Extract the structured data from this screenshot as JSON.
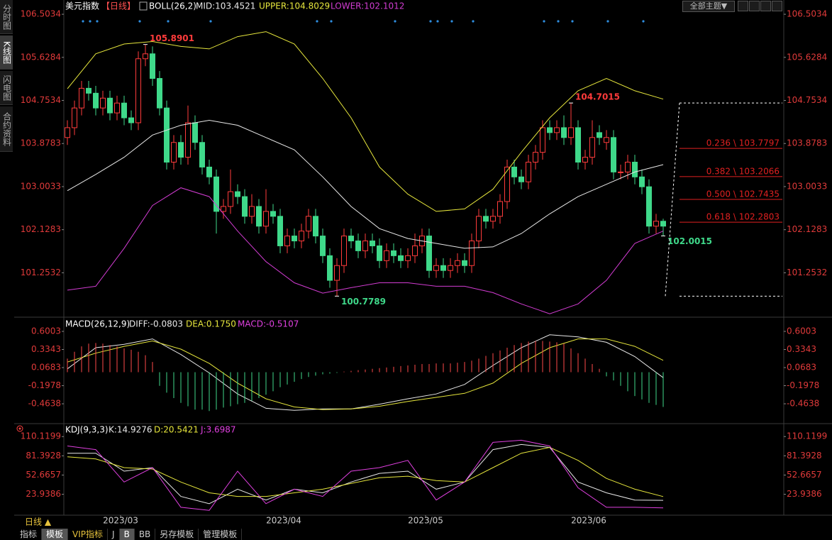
{
  "chart_data": [
    {
      "type": "candlestick",
      "title": "美元指数",
      "period": "【日线】",
      "indicator": "BOLL(26,2)",
      "up_color": "#ff3b3b",
      "down_color": "#3fd98a",
      "xlim": [
        -0.5,
        101
      ],
      "xticks": [
        {
          "value": 7.5,
          "label": "2023/03"
        },
        {
          "value": 30.5,
          "label": "2023/04"
        },
        {
          "value": 50.5,
          "label": "2023/05"
        },
        {
          "value": 73.5,
          "label": "2023/06"
        }
      ],
      "ylim": [
        100.38,
        106.62
      ],
      "yticks": [
        106.5034,
        105.6284,
        104.7534,
        103.8783,
        103.0033,
        102.1283,
        101.2532
      ],
      "open": [
        104.0,
        104.2,
        104.6,
        105.0,
        104.9,
        104.6,
        104.8,
        104.5,
        104.7,
        104.4,
        104.3,
        105.6,
        105.7,
        105.2,
        104.6,
        103.5,
        103.9,
        103.6,
        104.3,
        103.9,
        103.4,
        103.2,
        102.5,
        102.6,
        102.9,
        102.8,
        102.4,
        102.6,
        102.2,
        102.5,
        102.4,
        101.8,
        102.0,
        101.9,
        102.1,
        102.4,
        102.0,
        101.6,
        101.1,
        101.4,
        102.0,
        101.9,
        101.7,
        101.9,
        101.8,
        101.5,
        101.7,
        101.6,
        101.5,
        101.6,
        101.8,
        102.0,
        101.3,
        101.4,
        101.3,
        101.4,
        101.5,
        101.4,
        101.9,
        102.4,
        102.3,
        102.4,
        102.7,
        103.4,
        103.2,
        103.1,
        103.5,
        103.7,
        104.2,
        104.1,
        104.2,
        104.0,
        104.2,
        103.5,
        103.6,
        104.1,
        103.9,
        104.0,
        103.3,
        103.3,
        103.5,
        103.2,
        103.0,
        102.2,
        102.3
      ],
      "high": [
        104.35,
        104.75,
        105.15,
        105.15,
        105.05,
        104.95,
        104.95,
        104.85,
        104.85,
        104.55,
        105.75,
        105.8901,
        105.85,
        105.35,
        104.75,
        104.05,
        104.05,
        104.65,
        104.45,
        104.05,
        103.55,
        103.35,
        102.75,
        103.35,
        103.05,
        102.95,
        102.85,
        102.75,
        102.95,
        102.65,
        102.55,
        102.15,
        102.15,
        102.25,
        102.55,
        102.55,
        102.15,
        101.75,
        101.55,
        102.15,
        102.15,
        102.05,
        102.05,
        102.05,
        101.95,
        101.85,
        101.85,
        101.75,
        101.75,
        102.05,
        102.15,
        102.15,
        101.55,
        101.55,
        101.55,
        101.65,
        101.65,
        102.05,
        102.55,
        102.55,
        102.55,
        102.85,
        103.55,
        103.55,
        103.35,
        103.65,
        103.85,
        104.35,
        104.35,
        104.35,
        104.45,
        104.7015,
        104.35,
        103.75,
        104.35,
        104.25,
        104.15,
        104.15,
        103.45,
        103.65,
        103.65,
        103.35,
        103.15,
        102.45,
        102.35
      ],
      "low": [
        103.85,
        104.05,
        104.45,
        104.75,
        104.45,
        104.45,
        104.35,
        104.35,
        104.25,
        104.15,
        104.15,
        105.45,
        105.05,
        104.45,
        103.35,
        103.35,
        103.45,
        103.45,
        103.75,
        103.25,
        103.05,
        102.05,
        102.35,
        102.45,
        102.65,
        102.25,
        102.25,
        102.05,
        102.05,
        102.25,
        101.65,
        101.65,
        101.75,
        101.75,
        101.95,
        101.85,
        101.45,
        100.95,
        100.7789,
        101.25,
        101.75,
        101.55,
        101.55,
        101.65,
        101.35,
        101.35,
        101.45,
        101.35,
        101.35,
        101.45,
        101.65,
        101.15,
        101.15,
        101.15,
        101.15,
        101.25,
        101.25,
        101.25,
        101.75,
        102.15,
        102.15,
        102.25,
        102.55,
        103.05,
        102.95,
        102.95,
        103.35,
        103.55,
        103.95,
        103.95,
        103.85,
        103.85,
        103.35,
        103.35,
        103.45,
        103.85,
        103.75,
        103.15,
        103.15,
        103.15,
        103.05,
        102.85,
        102.05,
        102.05,
        102.0015
      ],
      "close": [
        104.2,
        104.6,
        105.0,
        104.9,
        104.6,
        104.8,
        104.5,
        104.7,
        104.4,
        104.3,
        105.6,
        105.7,
        105.2,
        104.6,
        103.5,
        103.9,
        103.6,
        104.3,
        103.9,
        103.4,
        103.2,
        102.5,
        102.6,
        102.9,
        102.8,
        102.4,
        102.6,
        102.2,
        102.5,
        102.4,
        101.8,
        102.0,
        101.9,
        102.1,
        102.4,
        102.0,
        101.6,
        101.1,
        101.4,
        102.0,
        101.9,
        101.7,
        101.9,
        101.8,
        101.5,
        101.7,
        101.6,
        101.5,
        101.6,
        101.8,
        102.0,
        101.3,
        101.4,
        101.3,
        101.4,
        101.5,
        101.4,
        101.9,
        102.4,
        102.3,
        102.4,
        102.7,
        103.4,
        103.2,
        103.1,
        103.5,
        103.7,
        104.2,
        104.1,
        104.2,
        104.0,
        104.2,
        103.5,
        103.6,
        104.0,
        104.0,
        104.0,
        103.3,
        103.3,
        103.5,
        103.2,
        103.0,
        102.2,
        102.3,
        102.2
      ],
      "series": [
        {
          "name": "MID:103.4521",
          "color": "#e8e8e8",
          "x": [
            0,
            4,
            8,
            12,
            16,
            20,
            24,
            28,
            32,
            36,
            40,
            44,
            48,
            52,
            56,
            60,
            64,
            68,
            72,
            76,
            80,
            84
          ],
          "values": [
            102.92,
            103.25,
            103.6,
            104.05,
            104.25,
            104.35,
            104.25,
            104.0,
            103.75,
            103.2,
            102.6,
            102.15,
            101.95,
            101.85,
            101.75,
            101.78,
            102.05,
            102.45,
            102.8,
            103.05,
            103.3,
            103.45
          ]
        },
        {
          "name": "UPPER:104.8029",
          "color": "#e6e63c",
          "x": [
            0,
            4,
            8,
            12,
            16,
            20,
            24,
            28,
            32,
            36,
            40,
            44,
            48,
            52,
            56,
            60,
            64,
            68,
            72,
            76,
            80,
            84
          ],
          "values": [
            104.99,
            105.7,
            105.9,
            105.95,
            105.85,
            105.8,
            106.05,
            106.15,
            105.9,
            105.2,
            104.4,
            103.4,
            102.85,
            102.5,
            102.55,
            102.95,
            103.7,
            104.4,
            104.95,
            105.2,
            104.95,
            104.78
          ]
        },
        {
          "name": "LOWER:102.1012",
          "color": "#d23cd2",
          "x": [
            0,
            4,
            8,
            12,
            16,
            20,
            24,
            28,
            32,
            36,
            40,
            44,
            48,
            52,
            56,
            60,
            64,
            68,
            72,
            76,
            80,
            84
          ],
          "values": [
            100.9,
            100.98,
            101.75,
            102.62,
            102.98,
            102.8,
            102.1,
            101.48,
            101.05,
            100.84,
            100.95,
            101.05,
            101.05,
            100.98,
            100.98,
            100.85,
            100.62,
            100.42,
            100.62,
            101.1,
            101.85,
            102.1
          ]
        }
      ],
      "fib_levels": [
        {
          "value": 103.7797,
          "label": "0.236 \\ 103.7797"
        },
        {
          "value": 103.2066,
          "label": "0.382 \\ 103.2066"
        },
        {
          "value": 102.7435,
          "label": "0.500 \\ 102.7435"
        },
        {
          "value": 102.2803,
          "label": "0.618 \\ 102.2803"
        }
      ],
      "fib_color": "#e02020"
    },
    {
      "type": "macd",
      "title": "MACD(26,12,9)",
      "xlim": [
        -0.5,
        101
      ],
      "ylim": [
        -0.745,
        0.788
      ],
      "yticks": [
        0.6003,
        0.3343,
        0.0683,
        -0.1978,
        -0.4638
      ],
      "up_color": "#ff4a4a",
      "down_color": "#3fd98a",
      "series": [
        {
          "name": "DIFF:-0.0803",
          "color": "#e8e8e8",
          "x": [
            0,
            4,
            8,
            12,
            16,
            20,
            24,
            28,
            32,
            36,
            40,
            44,
            48,
            52,
            56,
            60,
            64,
            68,
            72,
            76,
            80,
            84
          ],
          "values": [
            0.05,
            0.36,
            0.41,
            0.49,
            0.26,
            -0.01,
            -0.32,
            -0.53,
            -0.56,
            -0.54,
            -0.54,
            -0.47,
            -0.39,
            -0.32,
            -0.18,
            0.1,
            0.36,
            0.55,
            0.52,
            0.44,
            0.23,
            -0.08
          ]
        },
        {
          "name": "DEA:0.1750",
          "color": "#e6e63c",
          "x": [
            0,
            4,
            8,
            12,
            16,
            20,
            24,
            28,
            32,
            36,
            40,
            44,
            48,
            52,
            56,
            60,
            64,
            68,
            72,
            76,
            80,
            84
          ],
          "values": [
            0.15,
            0.28,
            0.38,
            0.46,
            0.34,
            0.13,
            -0.16,
            -0.39,
            -0.51,
            -0.55,
            -0.54,
            -0.5,
            -0.43,
            -0.37,
            -0.31,
            -0.16,
            0.13,
            0.36,
            0.49,
            0.49,
            0.38,
            0.175
          ]
        },
        {
          "name": "MACD:-0.5107",
          "color": "#e040e0",
          "kind": "bar",
          "values": [
            0.2,
            0.3,
            0.38,
            0.42,
            0.43,
            0.42,
            0.4,
            0.38,
            0.35,
            0.33,
            0.3,
            0.25,
            0.15,
            -0.2,
            -0.3,
            -0.38,
            -0.45,
            -0.5,
            -0.55,
            -0.55,
            -0.57,
            -0.55,
            -0.52,
            -0.5,
            -0.47,
            -0.45,
            -0.42,
            -0.38,
            -0.33,
            -0.28,
            -0.22,
            -0.18,
            -0.14,
            -0.1,
            -0.07,
            -0.05,
            -0.03,
            -0.02,
            -0.01,
            0.01,
            0.02,
            0.03,
            0.04,
            0.05,
            0.06,
            0.07,
            0.08,
            0.09,
            0.1,
            0.11,
            0.12,
            0.12,
            0.13,
            0.13,
            0.13,
            0.14,
            0.15,
            0.17,
            0.2,
            0.24,
            0.28,
            0.32,
            0.36,
            0.4,
            0.43,
            0.45,
            0.46,
            0.46,
            0.45,
            0.44,
            0.42,
            0.35,
            0.28,
            0.2,
            0.12,
            0.05,
            -0.06,
            -0.12,
            -0.2,
            -0.28,
            -0.35,
            -0.4,
            -0.45,
            -0.48,
            -0.51
          ]
        }
      ]
    },
    {
      "type": "kdj",
      "title": "KDJ(9,3,3)",
      "xlim": [
        -0.5,
        101
      ],
      "ylim": [
        -6.2,
        128.4
      ],
      "yticks": [
        110.1199,
        81.3928,
        52.6657,
        23.9386
      ],
      "series": [
        {
          "name": "K:14.9276",
          "color": "#e8e8e8",
          "x": [
            0,
            4,
            8,
            12,
            16,
            20,
            24,
            28,
            32,
            36,
            40,
            44,
            48,
            52,
            56,
            60,
            64,
            68,
            72,
            76,
            80,
            84
          ],
          "values": [
            85.3,
            85.3,
            58.4,
            63.8,
            20.7,
            9.9,
            31.5,
            15.3,
            31.5,
            26.1,
            42.2,
            55.2,
            58.4,
            31.5,
            42.2,
            90.7,
            98.3,
            94.0,
            42.2,
            26.1,
            15.3,
            14.9276
          ]
        },
        {
          "name": "D:20.5421",
          "color": "#e6e63c",
          "x": [
            0,
            4,
            8,
            12,
            16,
            20,
            24,
            28,
            32,
            36,
            40,
            44,
            48,
            52,
            56,
            60,
            64,
            68,
            72,
            76,
            80,
            84
          ],
          "values": [
            80,
            76.7,
            63.8,
            61.6,
            42.2,
            26.1,
            20.7,
            20.7,
            26.1,
            31.5,
            40.1,
            48.7,
            50.9,
            44.4,
            42.2,
            63.8,
            85.3,
            94.0,
            74.6,
            47.6,
            31.5,
            20.5421
          ]
        },
        {
          "name": "J:3.6987",
          "color": "#e040e0",
          "x": [
            0,
            4,
            8,
            12,
            16,
            20,
            24,
            28,
            32,
            36,
            40,
            44,
            48,
            52,
            56,
            60,
            64,
            68,
            72,
            76,
            80,
            84
          ],
          "values": [
            96.1,
            90.7,
            42.2,
            63.8,
            4.5,
            0,
            58.4,
            9.9,
            31.5,
            20.7,
            58.4,
            63.8,
            74.6,
            15.3,
            42.2,
            101.5,
            104.7,
            96.1,
            33.6,
            4.5,
            4.5,
            3.6987
          ]
        }
      ]
    }
  ],
  "ui": {
    "sidebar": [
      "分时图",
      "K线图",
      "闪电图",
      "合约资料"
    ],
    "theme_button": "全部主题▼",
    "period_label": "日线 ▲",
    "tabs": [
      "指标",
      "模板",
      "VIP指标",
      "J",
      "B",
      "BB",
      "另存模板",
      "管理模板"
    ]
  }
}
